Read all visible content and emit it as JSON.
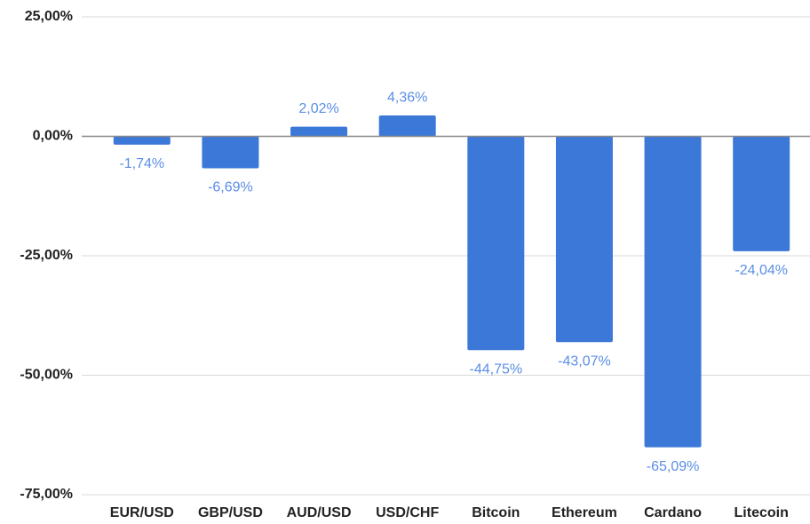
{
  "chart_data": {
    "type": "bar",
    "categories": [
      "EUR/USD",
      "GBP/USD",
      "AUD/USD",
      "USD/CHF",
      "Bitcoin",
      "Ethereum",
      "Cardano",
      "Litecoin"
    ],
    "values": [
      -1.74,
      -6.69,
      2.02,
      4.36,
      -44.75,
      -43.07,
      -65.09,
      -24.04
    ],
    "value_labels": [
      "-1,74%",
      "-6,69%",
      "2,02%",
      "4,36%",
      "-44,75%",
      "-43,07%",
      "-65,09%",
      "-24,04%"
    ],
    "color": "#3c78d8",
    "ylim": [
      -75,
      25
    ],
    "yticks": [
      {
        "value": 25,
        "label": "25,00%"
      },
      {
        "value": 0,
        "label": "0,00%"
      },
      {
        "value": -25,
        "label": "-25,00%"
      },
      {
        "value": -50,
        "label": "-50,00%"
      },
      {
        "value": -75,
        "label": "-75,00%"
      }
    ],
    "grid": true
  }
}
